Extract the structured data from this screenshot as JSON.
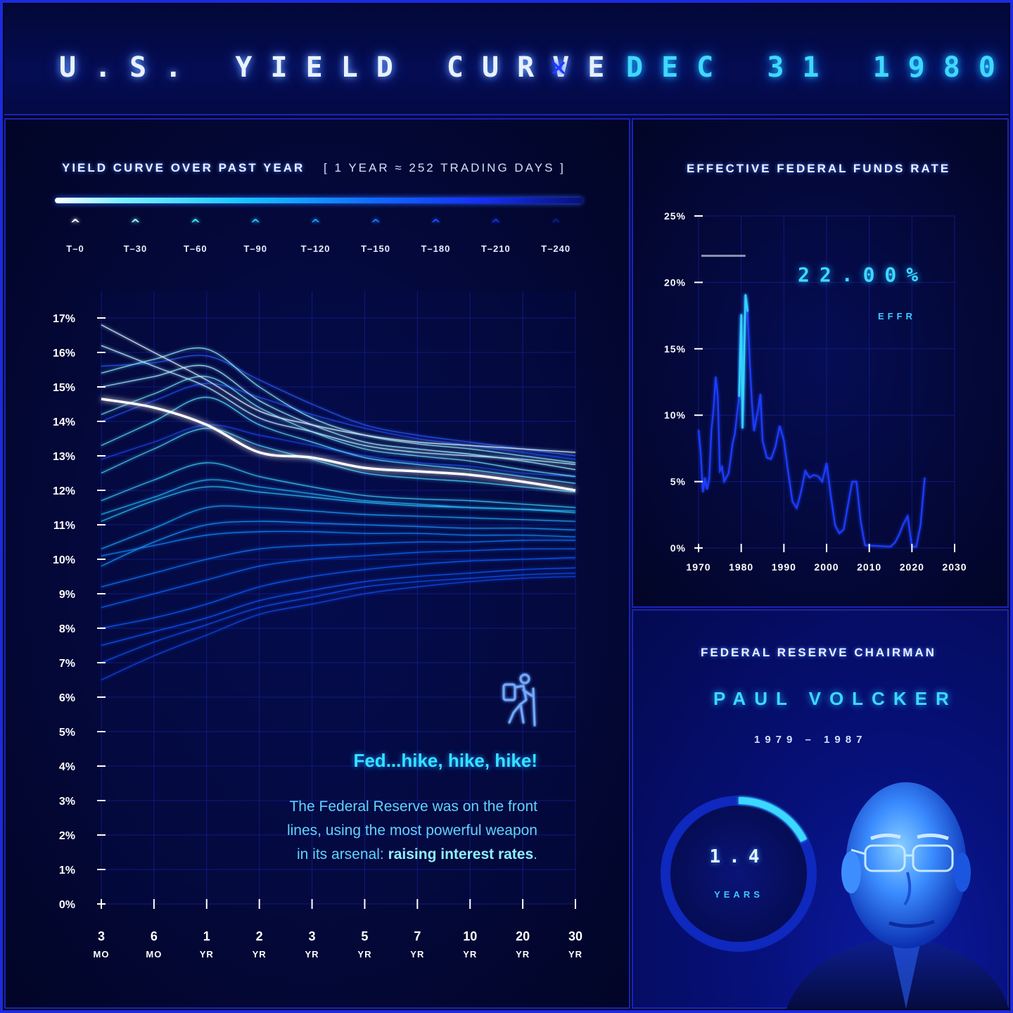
{
  "header": {
    "title": "U.S. YIELD CURVE",
    "separator": "×",
    "date": "DEC 31 1980"
  },
  "yield_panel": {
    "title": "YIELD CURVE OVER PAST YEAR",
    "subtitle": "[ 1 YEAR ≈ 252 TRADING DAYS ]",
    "legend": [
      {
        "label": "T–0",
        "color": "#ffffff"
      },
      {
        "label": "T–30",
        "color": "#8ff5ff"
      },
      {
        "label": "T–60",
        "color": "#3ee3ff"
      },
      {
        "label": "T–90",
        "color": "#1cc6ff"
      },
      {
        "label": "T–120",
        "color": "#139cff"
      },
      {
        "label": "T–150",
        "color": "#1176ff"
      },
      {
        "label": "T–180",
        "color": "#1552ff"
      },
      {
        "label": "T–210",
        "color": "#1a30e0"
      },
      {
        "label": "T–240",
        "color": "#141b8c"
      }
    ],
    "headline": "Fed...hike, hike, hike!",
    "body_1": "The Federal Reserve was on the front",
    "body_2": "lines, using the most powerful weapon",
    "body_3_prefix": "in its arsenal: ",
    "body_3_bold": "raising interest rates",
    "body_3_suffix": "."
  },
  "effr_panel": {
    "title": "EFFECTIVE FEDERAL FUNDS RATE",
    "value": "22.00%",
    "label": "EFFR"
  },
  "chair_panel": {
    "title": "FEDERAL RESERVE CHAIRMAN",
    "name": "PAUL VOLCKER",
    "term": "1979 – 1987",
    "tenure_value": "1.4",
    "tenure_unit": "YEARS",
    "tenure_fraction": 0.175
  },
  "chart_data": [
    {
      "type": "line",
      "title": "YIELD CURVE OVER PAST YEAR",
      "x_ticks": [
        {
          "top": "3",
          "bottom": "MO"
        },
        {
          "top": "6",
          "bottom": "MO"
        },
        {
          "top": "1",
          "bottom": "YR"
        },
        {
          "top": "2",
          "bottom": "YR"
        },
        {
          "top": "3",
          "bottom": "YR"
        },
        {
          "top": "5",
          "bottom": "YR"
        },
        {
          "top": "7",
          "bottom": "YR"
        },
        {
          "top": "10",
          "bottom": "YR"
        },
        {
          "top": "20",
          "bottom": "YR"
        },
        {
          "top": "30",
          "bottom": "YR"
        }
      ],
      "y_ticks": [
        "0%",
        "1%",
        "2%",
        "3%",
        "4%",
        "5%",
        "6%",
        "7%",
        "8%",
        "9%",
        "10%",
        "11%",
        "12%",
        "13%",
        "14%",
        "15%",
        "16%",
        "17%"
      ],
      "ylim": [
        0,
        17
      ],
      "series": [
        {
          "values": [
            14.65,
            14.4,
            13.9,
            13.1,
            12.95,
            12.65,
            12.55,
            12.45,
            12.25,
            12.0
          ],
          "color": "#ffffff",
          "width": 3.5
        },
        {
          "values": [
            16.8,
            16.0,
            15.2,
            14.3,
            13.9,
            13.6,
            13.4,
            13.3,
            13.2,
            13.1
          ],
          "color": "#d8f6ff",
          "width": 1.4
        },
        {
          "values": [
            16.2,
            15.6,
            15.0,
            14.1,
            13.7,
            13.3,
            13.1,
            13.0,
            12.9,
            12.75
          ],
          "color": "#b6efff",
          "width": 1.4
        },
        {
          "values": [
            15.0,
            15.3,
            15.6,
            14.6,
            13.9,
            13.4,
            13.2,
            13.05,
            12.85,
            12.6
          ],
          "color": "#9cecff",
          "width": 1.4
        },
        {
          "values": [
            15.4,
            15.8,
            16.1,
            15.0,
            14.1,
            13.6,
            13.35,
            13.2,
            13.0,
            12.8
          ],
          "color": "#8ef0ff",
          "width": 1.3
        },
        {
          "values": [
            14.2,
            14.8,
            15.3,
            14.4,
            13.7,
            13.2,
            13.0,
            12.85,
            12.6,
            12.4
          ],
          "color": "#72e6ff",
          "width": 1.3
        },
        {
          "values": [
            13.3,
            14.0,
            14.7,
            13.9,
            13.4,
            12.95,
            12.75,
            12.6,
            12.4,
            12.2
          ],
          "color": "#5ddfff",
          "width": 1.3
        },
        {
          "values": [
            12.5,
            13.2,
            13.8,
            13.3,
            12.9,
            12.5,
            12.35,
            12.25,
            12.1,
            11.95
          ],
          "color": "#48d8ff",
          "width": 1.3
        },
        {
          "values": [
            11.7,
            12.3,
            12.8,
            12.4,
            12.1,
            11.85,
            11.75,
            11.7,
            11.6,
            11.5
          ],
          "color": "#3dd0ff",
          "width": 1.3
        },
        {
          "values": [
            11.1,
            11.7,
            12.1,
            11.95,
            11.8,
            11.65,
            11.55,
            11.5,
            11.45,
            11.35
          ],
          "color": "#2fc4ff",
          "width": 1.3
        },
        {
          "values": [
            11.3,
            11.8,
            12.3,
            12.1,
            11.9,
            11.7,
            11.6,
            11.5,
            11.45,
            11.4
          ],
          "color": "#23b8ff",
          "width": 1.3
        },
        {
          "values": [
            10.3,
            10.9,
            11.5,
            11.5,
            11.4,
            11.3,
            11.25,
            11.2,
            11.15,
            11.1
          ],
          "color": "#1ea6ff",
          "width": 1.3
        },
        {
          "values": [
            9.8,
            10.5,
            11.0,
            11.1,
            11.05,
            11.0,
            10.95,
            10.9,
            10.9,
            10.85
          ],
          "color": "#1a96ff",
          "width": 1.3
        },
        {
          "values": [
            10.1,
            10.4,
            10.7,
            10.8,
            10.8,
            10.75,
            10.75,
            10.7,
            10.7,
            10.65
          ],
          "color": "#1788ff",
          "width": 1.3
        },
        {
          "values": [
            9.2,
            9.6,
            10.0,
            10.3,
            10.4,
            10.45,
            10.5,
            10.5,
            10.55,
            10.55
          ],
          "color": "#1478ff",
          "width": 1.3
        },
        {
          "values": [
            8.6,
            9.0,
            9.4,
            9.8,
            10.0,
            10.1,
            10.2,
            10.25,
            10.3,
            10.3
          ],
          "color": "#1168ff",
          "width": 1.3
        },
        {
          "values": [
            8.0,
            8.3,
            8.7,
            9.2,
            9.5,
            9.7,
            9.85,
            9.95,
            10.0,
            10.05
          ],
          "color": "#1060ff",
          "width": 1.3
        },
        {
          "values": [
            7.5,
            7.9,
            8.3,
            8.8,
            9.1,
            9.35,
            9.5,
            9.6,
            9.7,
            9.75
          ],
          "color": "#1258ff",
          "width": 1.3
        },
        {
          "values": [
            7.0,
            7.6,
            8.1,
            8.6,
            8.9,
            9.2,
            9.35,
            9.45,
            9.55,
            9.6
          ],
          "color": "#1450f5",
          "width": 1.3
        },
        {
          "values": [
            6.5,
            7.2,
            7.8,
            8.4,
            8.7,
            9.0,
            9.2,
            9.35,
            9.45,
            9.5
          ],
          "color": "#1648ec",
          "width": 1.3
        },
        {
          "values": [
            15.6,
            15.7,
            15.9,
            15.2,
            14.5,
            13.9,
            13.6,
            13.4,
            13.2,
            13.0
          ],
          "color": "#2a5cff",
          "width": 1.2
        },
        {
          "values": [
            14.0,
            14.6,
            15.1,
            14.7,
            14.2,
            13.8,
            13.5,
            13.3,
            13.1,
            12.9
          ],
          "color": "#2250ff",
          "width": 1.2
        },
        {
          "values": [
            12.9,
            13.4,
            13.9,
            13.6,
            13.3,
            13.0,
            12.8,
            12.7,
            12.5,
            12.4
          ],
          "color": "#1e44f0",
          "width": 1.2
        }
      ]
    },
    {
      "type": "line",
      "title": "EFFECTIVE FEDERAL FUNDS RATE",
      "x_ticks": [
        "1970",
        "1980",
        "1990",
        "2000",
        "2010",
        "2020",
        "2030"
      ],
      "xlim": [
        1970,
        2030
      ],
      "y_ticks": [
        "0%",
        "5%",
        "10%",
        "15%",
        "20%",
        "25%"
      ],
      "ylim": [
        0,
        25
      ],
      "marker": {
        "x": 1981,
        "y": 22.0
      },
      "x": [
        1970,
        1970.5,
        1971,
        1971.5,
        1972,
        1972.5,
        1973,
        1973.5,
        1974,
        1974.5,
        1975,
        1975.5,
        1976,
        1977,
        1977.5,
        1978,
        1978.5,
        1979,
        1979.5,
        1980,
        1980.3,
        1980.6,
        1981,
        1981.5,
        1982,
        1982.5,
        1983,
        1984,
        1984.5,
        1985,
        1986,
        1987,
        1988,
        1989,
        1990,
        1991,
        1992,
        1993,
        1994,
        1995,
        1996,
        1997,
        1998,
        1999,
        2000,
        2001,
        2002,
        2003,
        2004,
        2005,
        2006,
        2007,
        2008,
        2009,
        2015,
        2016,
        2017,
        2018,
        2019,
        2020,
        2021,
        2022,
        2023
      ],
      "values": [
        8.9,
        7.2,
        4.2,
        5.3,
        4.4,
        5.2,
        8.8,
        10.4,
        12.9,
        11.5,
        5.8,
        6.1,
        5.0,
        5.6,
        6.7,
        7.9,
        8.6,
        10.0,
        11.4,
        17.6,
        9.0,
        13.0,
        19.1,
        17.8,
        14.0,
        11.0,
        8.8,
        10.5,
        11.6,
        8.1,
        6.8,
        6.7,
        7.6,
        9.2,
        8.1,
        5.7,
        3.5,
        3.0,
        4.2,
        5.8,
        5.3,
        5.5,
        5.4,
        5.0,
        6.4,
        3.9,
        1.7,
        1.1,
        1.4,
        3.2,
        5.0,
        5.0,
        2.0,
        0.2,
        0.1,
        0.4,
        1.0,
        1.8,
        2.4,
        0.1,
        0.1,
        1.7,
        5.3
      ]
    }
  ]
}
